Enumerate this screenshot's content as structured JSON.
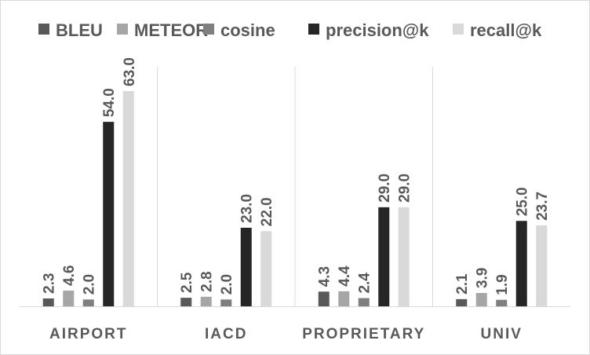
{
  "chart_data": {
    "type": "bar",
    "categories": [
      "AIRPORT",
      "IACD",
      "PROPRIETARY",
      "UNIV"
    ],
    "series": [
      {
        "name": "BLEU",
        "color": "#595959",
        "values": [
          2.3,
          2.5,
          4.3,
          2.1
        ],
        "labels": [
          "2.3",
          "2.5",
          "4.3",
          "2.1"
        ]
      },
      {
        "name": "METEOR",
        "color": "#a6a6a6",
        "values": [
          4.6,
          2.8,
          4.4,
          3.9
        ],
        "labels": [
          "4.6",
          "2.8",
          "4.4",
          "3.9"
        ]
      },
      {
        "name": "cosine",
        "color": "#7f7f7f",
        "values": [
          2.0,
          2.0,
          2.4,
          1.9
        ],
        "labels": [
          "2.0",
          "2.0",
          "2.4",
          "1.9"
        ]
      },
      {
        "name": "precision@k",
        "color": "#262626",
        "values": [
          54.0,
          23.0,
          29.0,
          25.0
        ],
        "labels": [
          "54.0",
          "23.0",
          "29.0",
          "25.0"
        ]
      },
      {
        "name": "recall@k",
        "color": "#d9d9d9",
        "values": [
          63.0,
          22.0,
          29.0,
          23.7
        ],
        "labels": [
          "63.0",
          "22.0",
          "29.0",
          "23.7"
        ]
      }
    ],
    "ylim": [
      0,
      63.0
    ],
    "legend": "top",
    "grid": false,
    "category_separators": true
  }
}
